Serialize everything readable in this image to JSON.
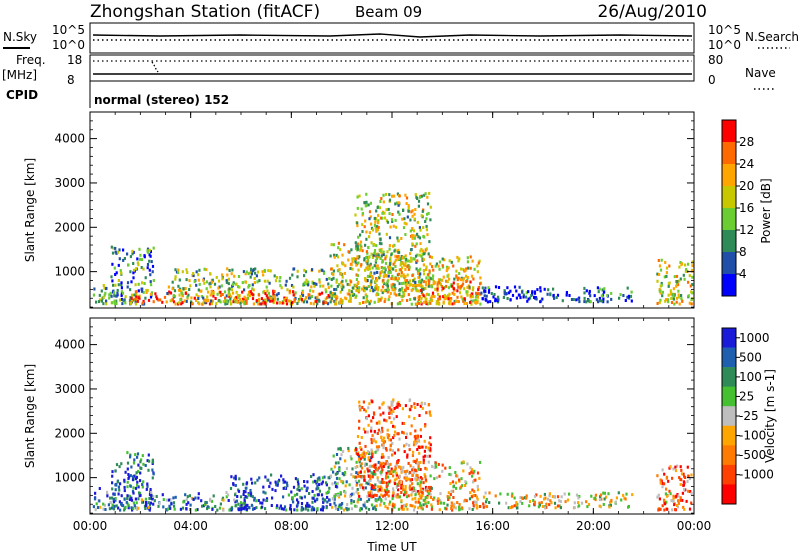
{
  "header": {
    "station": "Zhongshan Station (fitACF)",
    "beam": "Beam 09",
    "date": "26/Aug/2010"
  },
  "strip_labels": {
    "nsky": "N.Sky",
    "nsky_top": "10^5",
    "nsky_bottom": "10^0",
    "nsearch": "N.Search",
    "nsearch_top": "10^5",
    "nsearch_bottom": "10^0",
    "freq_top_label": "Freq.",
    "freq_unit": "[MHz]",
    "freq_top": "18",
    "freq_bottom": "8",
    "nave": "Nave",
    "nave_top": "80",
    "nave_bottom": "0",
    "cpid": "CPID",
    "cpid_text": "normal (stereo) 152"
  },
  "colors": {
    "scale": [
      "#0000ff",
      "#1f4fa8",
      "#2e8b57",
      "#6acd32",
      "#c8c800",
      "#ffa500",
      "#ff6a00",
      "#ff0000"
    ],
    "velocity_scale": [
      "#1a1ad9",
      "#1f5fb0",
      "#2e8b57",
      "#44c030",
      "#bebebe",
      "#ffa500",
      "#ff7a00",
      "#ff4000",
      "#ff0000"
    ]
  },
  "chart_data": [
    {
      "type": "heatmap",
      "panel": "power",
      "ylabel": "Slant Range [km]",
      "x_ticks": [
        "00:00",
        "04:00",
        "08:00",
        "12:00",
        "16:00",
        "20:00",
        "00:00"
      ],
      "y_ticks": [
        1000,
        2000,
        3000,
        4000
      ],
      "xlim": [
        0,
        24
      ],
      "ylim": [
        180,
        4600
      ],
      "colorbar": {
        "label": "Power [dB]",
        "ticks": [
          "4",
          "8",
          "12",
          "16",
          "20",
          "24",
          "28"
        ],
        "range": [
          0,
          32
        ]
      },
      "regions": [
        {
          "t0": 0.1,
          "t1": 1.0,
          "r0": 300,
          "r1": 800,
          "level": 0.35
        },
        {
          "t0": 0.8,
          "t1": 2.5,
          "r0": 300,
          "r1": 1600,
          "level": 0.3
        },
        {
          "t0": 1.5,
          "t1": 6.5,
          "r0": 300,
          "r1": 600,
          "level": 0.85
        },
        {
          "t0": 3.0,
          "t1": 10.0,
          "r0": 300,
          "r1": 1100,
          "level": 0.45
        },
        {
          "t0": 6.0,
          "t1": 9.5,
          "r0": 300,
          "r1": 600,
          "level": 0.9
        },
        {
          "t0": 9.5,
          "t1": 11.5,
          "r0": 300,
          "r1": 1700,
          "level": 0.55
        },
        {
          "t0": 10.5,
          "t1": 13.5,
          "r0": 600,
          "r1": 2800,
          "level": 0.5
        },
        {
          "t0": 11.5,
          "t1": 15.5,
          "r0": 300,
          "r1": 1400,
          "level": 0.6
        },
        {
          "t0": 13.0,
          "t1": 15.5,
          "r0": 300,
          "r1": 800,
          "level": 0.8
        },
        {
          "t0": 15.5,
          "t1": 21.5,
          "r0": 350,
          "r1": 700,
          "level": 0.15
        },
        {
          "t0": 22.5,
          "t1": 23.9,
          "r0": 300,
          "r1": 1300,
          "level": 0.55
        }
      ]
    },
    {
      "type": "heatmap",
      "panel": "velocity",
      "ylabel": "Slant Range [km]",
      "xlabel": "Time UT",
      "x_ticks": [
        "00:00",
        "04:00",
        "08:00",
        "12:00",
        "16:00",
        "20:00",
        "00:00"
      ],
      "y_ticks": [
        1000,
        2000,
        3000,
        4000
      ],
      "xlim": [
        0,
        24
      ],
      "ylim": [
        180,
        4600
      ],
      "colorbar": {
        "label": "Velocity [m s-1]",
        "ticks": [
          "1000",
          "500",
          "100",
          "25",
          "-25",
          "-100",
          "-500",
          "-1000"
        ],
        "range": [
          1250,
          -1250
        ]
      },
      "regions": [
        {
          "t0": 0.1,
          "t1": 1.0,
          "r0": 300,
          "r1": 800,
          "level": 0.3
        },
        {
          "t0": 0.8,
          "t1": 2.5,
          "r0": 300,
          "r1": 1600,
          "level": 0.15
        },
        {
          "t0": 1.5,
          "t1": 6.5,
          "r0": 300,
          "r1": 700,
          "level": 0.3
        },
        {
          "t0": 5.5,
          "t1": 9.5,
          "r0": 300,
          "r1": 1100,
          "level": 0.12
        },
        {
          "t0": 9.5,
          "t1": 11.5,
          "r0": 300,
          "r1": 1700,
          "level": 0.35
        },
        {
          "t0": 10.5,
          "t1": 13.5,
          "r0": 600,
          "r1": 2800,
          "level": 0.75
        },
        {
          "t0": 11.5,
          "t1": 15.5,
          "r0": 300,
          "r1": 1400,
          "level": 0.6
        },
        {
          "t0": 15.5,
          "t1": 21.5,
          "r0": 350,
          "r1": 700,
          "level": 0.55
        },
        {
          "t0": 22.5,
          "t1": 23.9,
          "r0": 300,
          "r1": 1300,
          "level": 0.7
        }
      ]
    }
  ]
}
